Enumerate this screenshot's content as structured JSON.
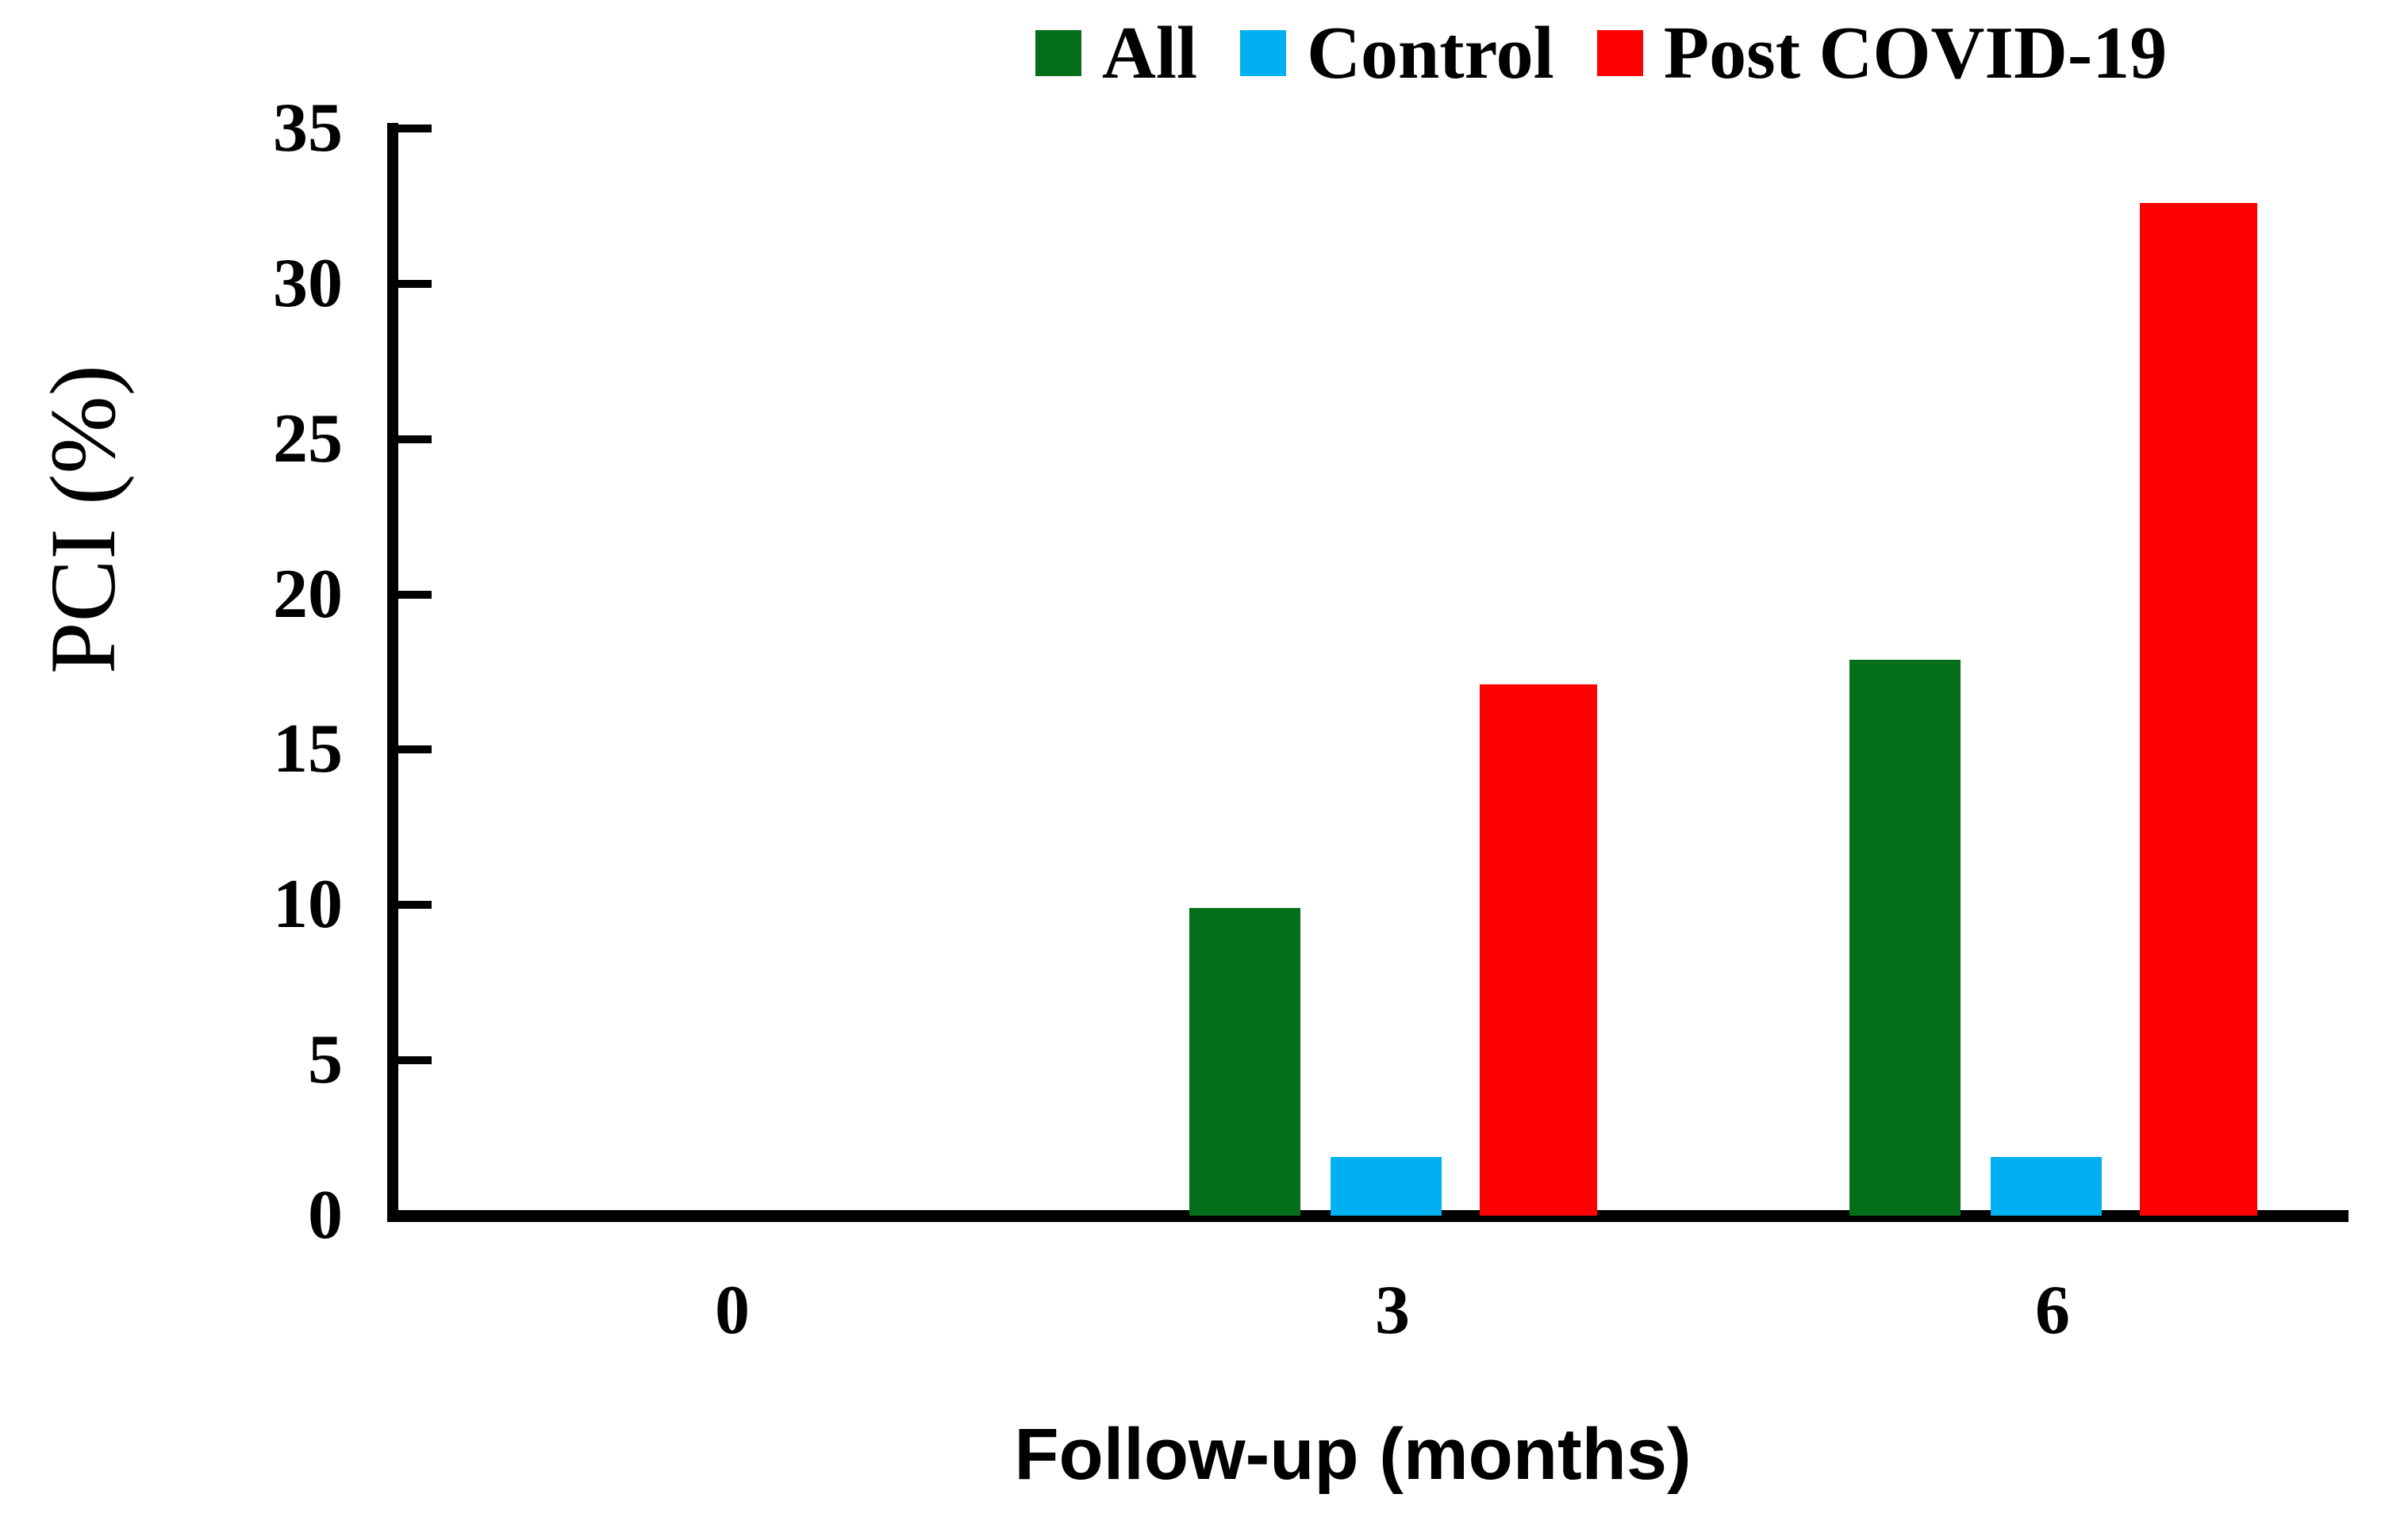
{
  "chart_data": {
    "type": "bar",
    "title": "",
    "xlabel": "Follow-up (months)",
    "ylabel": "PCI (%)",
    "categories": [
      "0",
      "3",
      "6"
    ],
    "series": [
      {
        "name": "All",
        "color": "#046e1b",
        "values": [
          0,
          9.9,
          17.9
        ]
      },
      {
        "name": "Control",
        "color": "#00b0f0",
        "values": [
          0,
          1.9,
          1.9
        ]
      },
      {
        "name": "Post COVID-19",
        "color": "#ff0000",
        "values": [
          0,
          17.1,
          32.6
        ]
      }
    ],
    "ylim": [
      0,
      35
    ],
    "yticks": [
      0,
      5,
      10,
      15,
      20,
      25,
      30,
      35
    ],
    "grid": false,
    "legend_position": "top",
    "axis_color": "#000000",
    "text_color": "#000000"
  }
}
